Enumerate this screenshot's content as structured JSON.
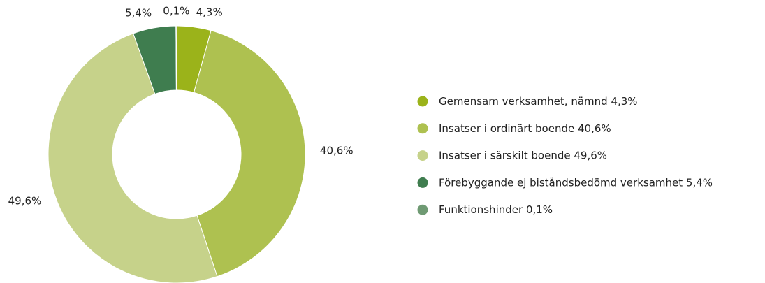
{
  "chart_data": {
    "type": "pie",
    "categories": [
      "Gemensam verksamhet, nämnd",
      "Insatser i ordinärt boende",
      "Insatser i särskilt boende",
      "Förebyggande ej biståndsbedömd verksamhet",
      "Funktionshinder"
    ],
    "values": [
      4.3,
      40.6,
      49.6,
      5.4,
      0.1
    ],
    "value_labels": [
      "4,3%",
      "40,6%",
      "49,6%",
      "5,4%",
      "0,1%"
    ],
    "colors": [
      "#9bb31a",
      "#aec150",
      "#c6d28a",
      "#3f7d4f",
      "#6f9a73"
    ],
    "donut": true,
    "legend": "right"
  }
}
